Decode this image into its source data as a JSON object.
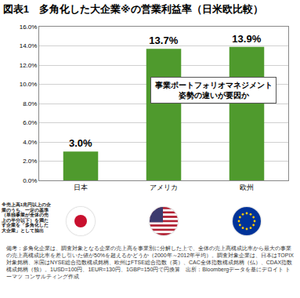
{
  "chart_data": {
    "type": "bar",
    "title": "図表1　多角化した大企業※の営業利益率（日米欧比較）",
    "categories": [
      "日本",
      "アメリカ",
      "欧州"
    ],
    "values": [
      3.0,
      13.7,
      13.9
    ],
    "value_labels": [
      "3.0%",
      "13.7%",
      "13.9%"
    ],
    "data_labels": true,
    "color": "#4f9a2d",
    "ylim": [
      0,
      16
    ],
    "yticks": [
      {
        "value": 0,
        "label": "0.0%"
      },
      {
        "value": 2,
        "label": "2.0%"
      },
      {
        "value": 4,
        "label": "4.0%"
      },
      {
        "value": 6,
        "label": "6.0%"
      },
      {
        "value": 8,
        "label": "8.0%"
      },
      {
        "value": 10,
        "label": "10.0%"
      },
      {
        "value": 12,
        "label": "12.0%"
      },
      {
        "value": 14,
        "label": "14.0%"
      },
      {
        "value": 16,
        "label": "16.0%"
      }
    ],
    "grid": true,
    "annotations": [
      "事業ポートフォリオマネジメント",
      "姿勢の違いが要因か"
    ]
  },
  "left_note": "※売上高1兆円以上の企業のうち、一定の基準（単独事業が全体の売上の半分以下）を満たす企業を「多角化した大企業」として抽出",
  "note": "備考：多角化企業は、調査対象となる企業の売上高を事業別に分解した上で、全体の売上高構成比率から最大の事業の売上高構成比率を差し引いた値が50%を超えるかどうか（2000年～2012年平均）。調査対象企業は、日本はTOPIX対象銘柄、米国はNYSE総合指数構成銘柄、欧州はFTSE総合指数（英）、CAC全体指数構成銘柄（仏）、CDAX指数構成銘柄（独）。1USD=100円、1EUR=130円、1GBP=150円で円換算　出所：Bloombergデータを基にデロイト トーマツ コンサルティング作成"
}
